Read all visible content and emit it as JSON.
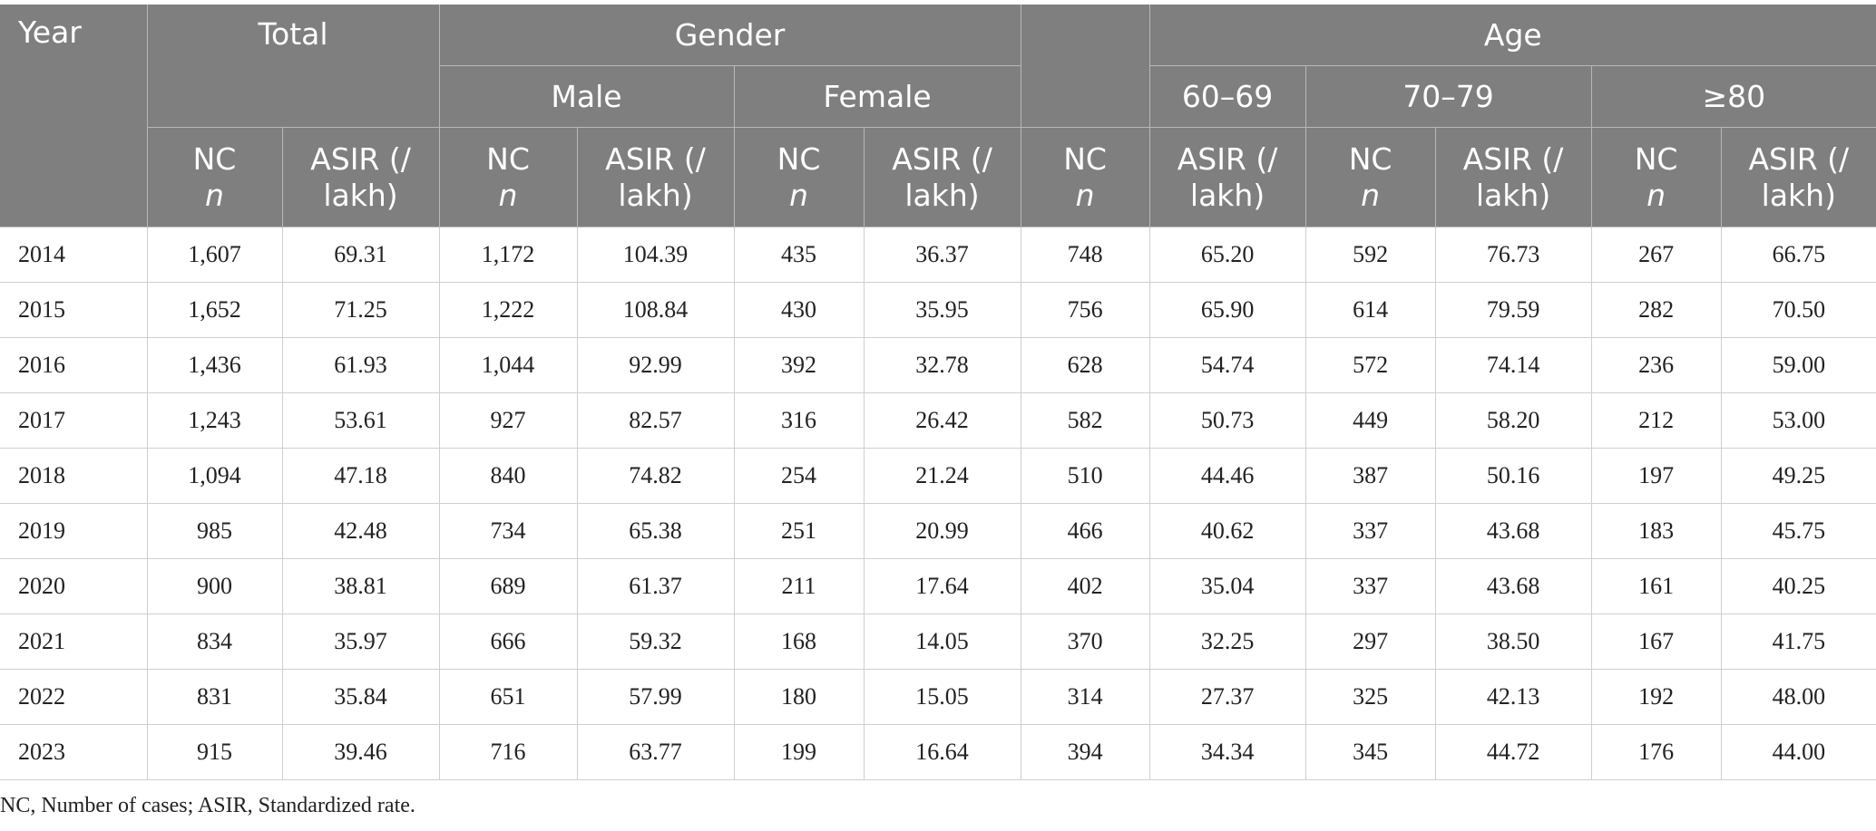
{
  "header": {
    "year": "Year",
    "total": "Total",
    "gender": "Gender",
    "age": "Age",
    "male": "Male",
    "female": "Female",
    "age_60_69": "60–69",
    "age_70_79": "70–79",
    "age_80_plus": "≥80",
    "nc": "NC",
    "n": "n",
    "asir_line1": "ASIR (/",
    "asir_line2": "lakh)"
  },
  "columns": [
    {
      "key": "nc_total",
      "type": "nc"
    },
    {
      "key": "asir_total",
      "type": "asir"
    },
    {
      "key": "nc_male",
      "type": "nc"
    },
    {
      "key": "asir_male",
      "type": "asir"
    },
    {
      "key": "nc_female",
      "type": "nc"
    },
    {
      "key": "asir_female",
      "type": "asir"
    },
    {
      "key": "nc_extra",
      "type": "nc"
    },
    {
      "key": "asir_60_69",
      "type": "asir"
    },
    {
      "key": "nc_70_79",
      "type": "nc"
    },
    {
      "key": "asir_70_79",
      "type": "asir"
    },
    {
      "key": "nc_80_plus",
      "type": "nc"
    },
    {
      "key": "asir_80_plus",
      "type": "asir"
    }
  ],
  "rows": [
    [
      "2014",
      "1,607",
      "69.31",
      "1,172",
      "104.39",
      "435",
      "36.37",
      "748",
      "65.20",
      "592",
      "76.73",
      "267",
      "66.75"
    ],
    [
      "2015",
      "1,652",
      "71.25",
      "1,222",
      "108.84",
      "430",
      "35.95",
      "756",
      "65.90",
      "614",
      "79.59",
      "282",
      "70.50"
    ],
    [
      "2016",
      "1,436",
      "61.93",
      "1,044",
      "92.99",
      "392",
      "32.78",
      "628",
      "54.74",
      "572",
      "74.14",
      "236",
      "59.00"
    ],
    [
      "2017",
      "1,243",
      "53.61",
      "927",
      "82.57",
      "316",
      "26.42",
      "582",
      "50.73",
      "449",
      "58.20",
      "212",
      "53.00"
    ],
    [
      "2018",
      "1,094",
      "47.18",
      "840",
      "74.82",
      "254",
      "21.24",
      "510",
      "44.46",
      "387",
      "50.16",
      "197",
      "49.25"
    ],
    [
      "2019",
      "985",
      "42.48",
      "734",
      "65.38",
      "251",
      "20.99",
      "466",
      "40.62",
      "337",
      "43.68",
      "183",
      "45.75"
    ],
    [
      "2020",
      "900",
      "38.81",
      "689",
      "61.37",
      "211",
      "17.64",
      "402",
      "35.04",
      "337",
      "43.68",
      "161",
      "40.25"
    ],
    [
      "2021",
      "834",
      "35.97",
      "666",
      "59.32",
      "168",
      "14.05",
      "370",
      "32.25",
      "297",
      "38.50",
      "167",
      "41.75"
    ],
    [
      "2022",
      "831",
      "35.84",
      "651",
      "57.99",
      "180",
      "15.05",
      "314",
      "27.37",
      "325",
      "42.13",
      "192",
      "48.00"
    ],
    [
      "2023",
      "915",
      "39.46",
      "716",
      "63.77",
      "199",
      "16.64",
      "394",
      "34.34",
      "345",
      "44.72",
      "176",
      "44.00"
    ]
  ],
  "footnote": "NC, Number of cases; ASIR, Standardized rate.",
  "colors": {
    "header_bg": "#7f7f7f",
    "header_text": "#ffffff",
    "grid": "#cfcfcf"
  }
}
